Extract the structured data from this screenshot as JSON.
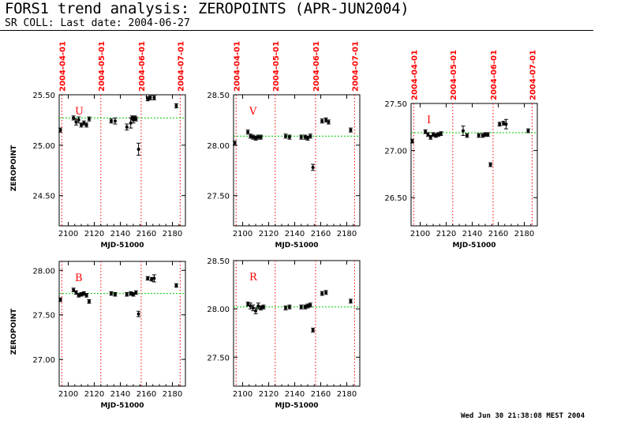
{
  "header": {
    "title": "FORS1 trend analysis: ZEROPOINTS (APR-JUN2004)",
    "subtitle": "SR COLL: Last date: 2004-06-27",
    "timestamp": "Wed Jun 30 21:38:08 MEST 2004"
  },
  "colors": {
    "marker": "#000000",
    "date_line": "#ff0000",
    "mean_line": "#00cc00",
    "date_text": "#ff0000"
  },
  "chart_data": [
    {
      "type": "scatter",
      "band": "U",
      "xlabel": "MJD-51000",
      "ylabel": "ZEROPOINT",
      "xlim": [
        2093,
        2190
      ],
      "ylim": [
        24.2,
        25.5
      ],
      "xticks": [
        2100,
        2120,
        2140,
        2160,
        2180
      ],
      "yticks": [
        24.5,
        25.0,
        25.5
      ],
      "xtick_labels": [
        "2100",
        "2120",
        "2140",
        "2160",
        "2180"
      ],
      "ytick_labels": [
        "24.50",
        "25.00",
        "25.50"
      ],
      "date_markers": [
        {
          "x": 2095,
          "label": "2004-04-01"
        },
        {
          "x": 2125,
          "label": "2004-05-01"
        },
        {
          "x": 2156,
          "label": "2004-06-01"
        },
        {
          "x": 2186,
          "label": "2004-07-01"
        }
      ],
      "mean": 25.27,
      "points": [
        {
          "x": 2093,
          "y": 25.15,
          "err": 0.02
        },
        {
          "x": 2104,
          "y": 25.27,
          "err": 0.02
        },
        {
          "x": 2106,
          "y": 25.23,
          "err": 0.03
        },
        {
          "x": 2108,
          "y": 25.25,
          "err": 0.03
        },
        {
          "x": 2110,
          "y": 25.2,
          "err": 0.02
        },
        {
          "x": 2112,
          "y": 25.22,
          "err": 0.02
        },
        {
          "x": 2114,
          "y": 25.2,
          "err": 0.02
        },
        {
          "x": 2116,
          "y": 25.26,
          "err": 0.02
        },
        {
          "x": 2133,
          "y": 25.24,
          "err": 0.02
        },
        {
          "x": 2136,
          "y": 25.24,
          "err": 0.03
        },
        {
          "x": 2145,
          "y": 25.18,
          "err": 0.03
        },
        {
          "x": 2148,
          "y": 25.22,
          "err": 0.05
        },
        {
          "x": 2149,
          "y": 25.27,
          "err": 0.02
        },
        {
          "x": 2150,
          "y": 25.25,
          "err": 0.03
        },
        {
          "x": 2151,
          "y": 25.27,
          "err": 0.02
        },
        {
          "x": 2152,
          "y": 25.26,
          "err": 0.02
        },
        {
          "x": 2154,
          "y": 24.96,
          "err": 0.06
        },
        {
          "x": 2161,
          "y": 25.46,
          "err": 0.02
        },
        {
          "x": 2163,
          "y": 25.47,
          "err": 0.02
        },
        {
          "x": 2166,
          "y": 25.47,
          "err": 0.02
        },
        {
          "x": 2183,
          "y": 25.39,
          "err": 0.02
        }
      ]
    },
    {
      "type": "scatter",
      "band": "V",
      "xlabel": "MJD-51000",
      "ylabel": "",
      "xlim": [
        2093,
        2190
      ],
      "ylim": [
        27.2,
        28.5
      ],
      "xticks": [
        2100,
        2120,
        2140,
        2160,
        2180
      ],
      "yticks": [
        27.5,
        28.0,
        28.5
      ],
      "xtick_labels": [
        "2100",
        "2120",
        "2140",
        "2160",
        "2180"
      ],
      "ytick_labels": [
        "27.50",
        "28.00",
        "28.50"
      ],
      "date_markers": [
        {
          "x": 2095,
          "label": "2004-04-01"
        },
        {
          "x": 2125,
          "label": "2004-05-01"
        },
        {
          "x": 2156,
          "label": "2004-06-01"
        },
        {
          "x": 2186,
          "label": "2004-07-01"
        }
      ],
      "mean": 28.09,
      "points": [
        {
          "x": 2093,
          "y": 28.02,
          "err": 0.02
        },
        {
          "x": 2104,
          "y": 28.13,
          "err": 0.02
        },
        {
          "x": 2106,
          "y": 28.09,
          "err": 0.02
        },
        {
          "x": 2108,
          "y": 28.08,
          "err": 0.02
        },
        {
          "x": 2110,
          "y": 28.07,
          "err": 0.02
        },
        {
          "x": 2112,
          "y": 28.08,
          "err": 0.02
        },
        {
          "x": 2114,
          "y": 28.08,
          "err": 0.02
        },
        {
          "x": 2133,
          "y": 28.09,
          "err": 0.02
        },
        {
          "x": 2136,
          "y": 28.08,
          "err": 0.02
        },
        {
          "x": 2145,
          "y": 28.08,
          "err": 0.02
        },
        {
          "x": 2148,
          "y": 28.08,
          "err": 0.02
        },
        {
          "x": 2150,
          "y": 28.07,
          "err": 0.02
        },
        {
          "x": 2152,
          "y": 28.09,
          "err": 0.02
        },
        {
          "x": 2154,
          "y": 27.78,
          "err": 0.03
        },
        {
          "x": 2161,
          "y": 28.24,
          "err": 0.02
        },
        {
          "x": 2164,
          "y": 28.25,
          "err": 0.02
        },
        {
          "x": 2166,
          "y": 28.23,
          "err": 0.02
        },
        {
          "x": 2183,
          "y": 28.15,
          "err": 0.02
        }
      ]
    },
    {
      "type": "scatter",
      "band": "I",
      "xlabel": "MJD-51000",
      "ylabel": "",
      "xlim": [
        2093,
        2190
      ],
      "ylim": [
        26.2,
        27.5
      ],
      "xticks": [
        2100,
        2120,
        2140,
        2160,
        2180
      ],
      "yticks": [
        26.5,
        27.0,
        27.5
      ],
      "xtick_labels": [
        "2100",
        "2120",
        "2140",
        "2160",
        "2180"
      ],
      "ytick_labels": [
        "26.50",
        "27.00",
        "27.50"
      ],
      "date_markers": [
        {
          "x": 2095,
          "label": "2004-04-01"
        },
        {
          "x": 2125,
          "label": "2004-05-01"
        },
        {
          "x": 2156,
          "label": "2004-06-01"
        },
        {
          "x": 2186,
          "label": "2004-07-01"
        }
      ],
      "mean": 27.19,
      "points": [
        {
          "x": 2093,
          "y": 27.1,
          "err": 0.02
        },
        {
          "x": 2104,
          "y": 27.2,
          "err": 0.02
        },
        {
          "x": 2106,
          "y": 27.17,
          "err": 0.02
        },
        {
          "x": 2108,
          "y": 27.14,
          "err": 0.02
        },
        {
          "x": 2110,
          "y": 27.17,
          "err": 0.02
        },
        {
          "x": 2112,
          "y": 27.16,
          "err": 0.02
        },
        {
          "x": 2114,
          "y": 27.17,
          "err": 0.02
        },
        {
          "x": 2116,
          "y": 27.18,
          "err": 0.02
        },
        {
          "x": 2133,
          "y": 27.21,
          "err": 0.05
        },
        {
          "x": 2136,
          "y": 27.16,
          "err": 0.02
        },
        {
          "x": 2145,
          "y": 27.16,
          "err": 0.02
        },
        {
          "x": 2148,
          "y": 27.16,
          "err": 0.02
        },
        {
          "x": 2150,
          "y": 27.17,
          "err": 0.02
        },
        {
          "x": 2152,
          "y": 27.17,
          "err": 0.02
        },
        {
          "x": 2154,
          "y": 26.85,
          "err": 0.02
        },
        {
          "x": 2161,
          "y": 27.28,
          "err": 0.02
        },
        {
          "x": 2164,
          "y": 27.29,
          "err": 0.02
        },
        {
          "x": 2166,
          "y": 27.28,
          "err": 0.05
        },
        {
          "x": 2183,
          "y": 27.21,
          "err": 0.02
        }
      ]
    },
    {
      "type": "scatter",
      "band": "B",
      "xlabel": "MJD-51000",
      "ylabel": "ZEROPOINT",
      "xlim": [
        2093,
        2190
      ],
      "ylim": [
        26.7,
        28.1
      ],
      "xticks": [
        2100,
        2120,
        2140,
        2160,
        2180
      ],
      "yticks": [
        27.0,
        27.5,
        28.0
      ],
      "xtick_labels": [
        "2100",
        "2120",
        "2140",
        "2160",
        "2180"
      ],
      "ytick_labels": [
        "27.00",
        "27.50",
        "28.00"
      ],
      "date_markers": [
        {
          "x": 2095,
          "label": ""
        },
        {
          "x": 2125,
          "label": ""
        },
        {
          "x": 2156,
          "label": ""
        },
        {
          "x": 2186,
          "label": ""
        }
      ],
      "mean": 27.74,
      "points": [
        {
          "x": 2093,
          "y": 27.67,
          "err": 0.02
        },
        {
          "x": 2104,
          "y": 27.78,
          "err": 0.02
        },
        {
          "x": 2106,
          "y": 27.75,
          "err": 0.02
        },
        {
          "x": 2108,
          "y": 27.72,
          "err": 0.02
        },
        {
          "x": 2110,
          "y": 27.73,
          "err": 0.02
        },
        {
          "x": 2112,
          "y": 27.74,
          "err": 0.02
        },
        {
          "x": 2114,
          "y": 27.72,
          "err": 0.02
        },
        {
          "x": 2116,
          "y": 27.65,
          "err": 0.02
        },
        {
          "x": 2133,
          "y": 27.74,
          "err": 0.02
        },
        {
          "x": 2136,
          "y": 27.73,
          "err": 0.02
        },
        {
          "x": 2145,
          "y": 27.73,
          "err": 0.02
        },
        {
          "x": 2148,
          "y": 27.74,
          "err": 0.02
        },
        {
          "x": 2150,
          "y": 27.73,
          "err": 0.02
        },
        {
          "x": 2152,
          "y": 27.75,
          "err": 0.02
        },
        {
          "x": 2154,
          "y": 27.51,
          "err": 0.03
        },
        {
          "x": 2161,
          "y": 27.91,
          "err": 0.02
        },
        {
          "x": 2164,
          "y": 27.9,
          "err": 0.02
        },
        {
          "x": 2166,
          "y": 27.91,
          "err": 0.04
        },
        {
          "x": 2183,
          "y": 27.83,
          "err": 0.02
        }
      ]
    },
    {
      "type": "scatter",
      "band": "R",
      "xlabel": "MJD-51000",
      "ylabel": "",
      "xlim": [
        2093,
        2190
      ],
      "ylim": [
        27.2,
        28.5
      ],
      "xticks": [
        2100,
        2120,
        2140,
        2160,
        2180
      ],
      "yticks": [
        27.5,
        28.0,
        28.5
      ],
      "xtick_labels": [
        "2100",
        "2120",
        "2140",
        "2160",
        "2180"
      ],
      "ytick_labels": [
        "27.50",
        "28.00",
        "28.50"
      ],
      "date_markers": [
        {
          "x": 2095,
          "label": ""
        },
        {
          "x": 2125,
          "label": ""
        },
        {
          "x": 2156,
          "label": ""
        },
        {
          "x": 2186,
          "label": ""
        }
      ],
      "mean": 28.02,
      "points": [
        {
          "x": 2104,
          "y": 28.05,
          "err": 0.02
        },
        {
          "x": 2106,
          "y": 28.03,
          "err": 0.03
        },
        {
          "x": 2108,
          "y": 28.01,
          "err": 0.03
        },
        {
          "x": 2110,
          "y": 27.98,
          "err": 0.03
        },
        {
          "x": 2112,
          "y": 28.03,
          "err": 0.03
        },
        {
          "x": 2114,
          "y": 28.01,
          "err": 0.02
        },
        {
          "x": 2116,
          "y": 28.02,
          "err": 0.02
        },
        {
          "x": 2133,
          "y": 28.01,
          "err": 0.02
        },
        {
          "x": 2136,
          "y": 28.02,
          "err": 0.02
        },
        {
          "x": 2145,
          "y": 28.02,
          "err": 0.02
        },
        {
          "x": 2148,
          "y": 28.02,
          "err": 0.02
        },
        {
          "x": 2150,
          "y": 28.03,
          "err": 0.02
        },
        {
          "x": 2152,
          "y": 28.04,
          "err": 0.02
        },
        {
          "x": 2154,
          "y": 27.78,
          "err": 0.02
        },
        {
          "x": 2161,
          "y": 28.16,
          "err": 0.02
        },
        {
          "x": 2164,
          "y": 28.17,
          "err": 0.02
        },
        {
          "x": 2183,
          "y": 28.08,
          "err": 0.02
        }
      ]
    }
  ]
}
